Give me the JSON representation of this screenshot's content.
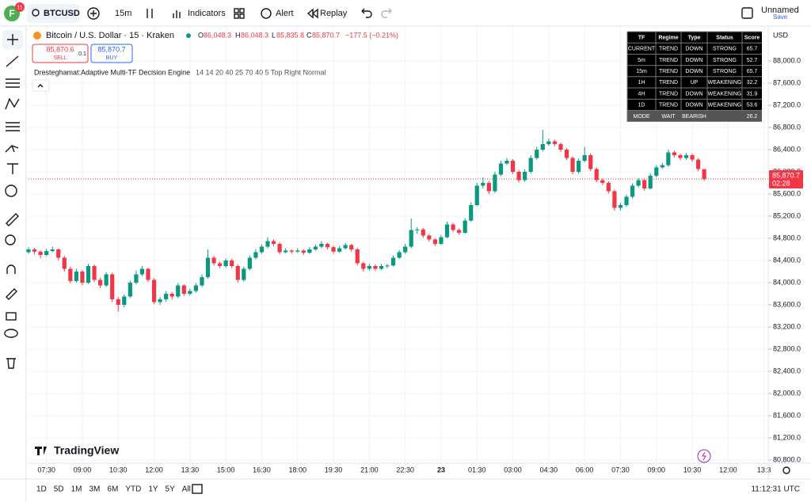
{
  "toolbar": {
    "avatar": "F",
    "badge": "11",
    "symbol": "BTCUSD",
    "interval": "15m",
    "indicators": "Indicators",
    "alert": "Alert",
    "replay": "Replay",
    "layout_name": "Unnamed",
    "save": "Save"
  },
  "legend": {
    "title": "Bitcoin / U.S. Dollar · 15 · Kraken",
    "o_label": "O",
    "o": "86,048.3",
    "h_label": "H",
    "h": "86,048.3",
    "l_label": "L",
    "l": "85,835.8",
    "c_label": "C",
    "c": "85,870.7",
    "change": "−177.5 (−0.21%)",
    "sell_price": "85,870.6",
    "sell": "SELL",
    "qty": "0.1",
    "buy_price": "85,870.7",
    "buy": "BUY",
    "indicator": "Dresteghamat:Adaptive Multi-TF Decision Engine",
    "indicator_params": "14 14 20 40 25 70 40 5 Top Right Normal",
    "currency": "USD"
  },
  "table": {
    "header": [
      "TF",
      "Regime",
      "Type",
      "Status",
      "Score"
    ],
    "rows": [
      [
        "CURRENT",
        "TREND",
        "DOWN",
        "STRONG",
        "65.7"
      ],
      [
        "5m",
        "TREND",
        "DOWN",
        "STRONG",
        "52.7"
      ],
      [
        "15m",
        "TREND",
        "DOWN",
        "STRONG",
        "65.7"
      ],
      [
        "1H",
        "TREND",
        "UP",
        "WEAKENING",
        "32.2"
      ],
      [
        "4H",
        "TREND",
        "DOWN",
        "WEAKENING",
        "31.9"
      ],
      [
        "1D",
        "TREND",
        "DOWN",
        "WEAKENING",
        "53.6"
      ],
      [
        "MODE",
        "WAIT",
        "BEARISH",
        "",
        "26.2"
      ]
    ]
  },
  "chart_data": {
    "type": "candlestick",
    "up_color": "#089981",
    "down_color": "#f23645",
    "ylim": [
      80671,
      88629
    ],
    "yticks": [
      {
        "value": 80800,
        "label": "80,800.0"
      },
      {
        "value": 81200,
        "label": "81,200.0"
      },
      {
        "value": 81600,
        "label": "81,600.0"
      },
      {
        "value": 82000,
        "label": "82,000.0"
      },
      {
        "value": 82400,
        "label": "82,400.0"
      },
      {
        "value": 82800,
        "label": "82,800.0"
      },
      {
        "value": 83200,
        "label": "83,200.0"
      },
      {
        "value": 83600,
        "label": "83,600.0"
      },
      {
        "value": 84000,
        "label": "84,000.0"
      },
      {
        "value": 84400,
        "label": "84,400.0"
      },
      {
        "value": 84800,
        "label": "84,800.0"
      },
      {
        "value": 85200,
        "label": "85,200.0"
      },
      {
        "value": 85600,
        "label": "85,600.0"
      },
      {
        "value": 86000,
        "label": "86,000.0"
      },
      {
        "value": 86400,
        "label": "86,400.0"
      },
      {
        "value": 86800,
        "label": "86,800.0"
      },
      {
        "value": 87200,
        "label": "87,200.0"
      },
      {
        "value": 87600,
        "label": "87,600.0"
      },
      {
        "value": 88000,
        "label": "88,000.0"
      }
    ],
    "xticks": [
      "07:30",
      "09:00",
      "10:30",
      "12:00",
      "13:30",
      "15:00",
      "16:30",
      "18:00",
      "19:30",
      "21:00",
      "22:30",
      "23",
      "01:30",
      "03:00",
      "04:30",
      "06:00",
      "07:30",
      "09:00",
      "10:30",
      "12:00",
      "13:3"
    ],
    "last_price": {
      "value": 85870.7,
      "label": "85,870.7",
      "countdown": "02:28"
    },
    "ohlc": [
      [
        84550,
        84640,
        84520,
        84600
      ],
      [
        84600,
        84630,
        84510,
        84560
      ],
      [
        84560,
        84580,
        84440,
        84500
      ],
      [
        84500,
        84610,
        84480,
        84570
      ],
      [
        84570,
        84650,
        84550,
        84600
      ],
      [
        84600,
        84620,
        84400,
        84450
      ],
      [
        84450,
        84480,
        84200,
        84250
      ],
      [
        84250,
        84290,
        83990,
        84030
      ],
      [
        84030,
        84250,
        84000,
        84200
      ],
      [
        84200,
        84230,
        83950,
        84000
      ],
      [
        84000,
        84340,
        83980,
        84300
      ],
      [
        84300,
        84330,
        84010,
        84050
      ],
      [
        84050,
        84090,
        83900,
        83950
      ],
      [
        83950,
        84190,
        83920,
        84150
      ],
      [
        84150,
        84180,
        83650,
        83700
      ],
      [
        83700,
        83740,
        83480,
        83600
      ],
      [
        83600,
        83790,
        83560,
        83750
      ],
      [
        83750,
        84040,
        83720,
        84000
      ],
      [
        84000,
        84220,
        83970,
        84150
      ],
      [
        84150,
        84300,
        84120,
        84250
      ],
      [
        84250,
        84270,
        84010,
        84050
      ],
      [
        84050,
        84080,
        83610,
        83650
      ],
      [
        83650,
        83740,
        83600,
        83700
      ],
      [
        83700,
        83850,
        83660,
        83800
      ],
      [
        83800,
        83830,
        83700,
        83750
      ],
      [
        83750,
        83990,
        83720,
        83950
      ],
      [
        83950,
        83970,
        83760,
        83800
      ],
      [
        83800,
        83890,
        83770,
        83850
      ],
      [
        83850,
        83990,
        83820,
        83950
      ],
      [
        83950,
        84150,
        83920,
        84100
      ],
      [
        84100,
        84600,
        84070,
        84450
      ],
      [
        84450,
        84490,
        84310,
        84350
      ],
      [
        84350,
        84380,
        84260,
        84300
      ],
      [
        84300,
        84440,
        84270,
        84400
      ],
      [
        84400,
        84430,
        84260,
        84300
      ],
      [
        84300,
        84330,
        84000,
        84050
      ],
      [
        84050,
        84290,
        84020,
        84250
      ],
      [
        84250,
        84490,
        84220,
        84450
      ],
      [
        84450,
        84600,
        84420,
        84550
      ],
      [
        84550,
        84690,
        84520,
        84650
      ],
      [
        84650,
        84820,
        84620,
        84750
      ],
      [
        84750,
        84780,
        84660,
        84700
      ],
      [
        84700,
        84730,
        84510,
        84550
      ],
      [
        84550,
        84620,
        84530,
        84580
      ],
      [
        84580,
        84600,
        84520,
        84560
      ],
      [
        84560,
        84620,
        84540,
        84580
      ],
      [
        84580,
        84600,
        84500,
        84540
      ],
      [
        84540,
        84640,
        84520,
        84600
      ],
      [
        84600,
        84690,
        84580,
        84650
      ],
      [
        84650,
        84750,
        84620,
        84700
      ],
      [
        84700,
        84720,
        84600,
        84640
      ],
      [
        84640,
        84670,
        84520,
        84560
      ],
      [
        84560,
        84660,
        84540,
        84620
      ],
      [
        84620,
        84720,
        84600,
        84680
      ],
      [
        84680,
        84700,
        84560,
        84600
      ],
      [
        84600,
        84630,
        84310,
        84350
      ],
      [
        84350,
        84380,
        84200,
        84250
      ],
      [
        84250,
        84340,
        84220,
        84300
      ],
      [
        84300,
        84330,
        84210,
        84250
      ],
      [
        84250,
        84340,
        84230,
        84300
      ],
      [
        84300,
        84340,
        84260,
        84310
      ],
      [
        84310,
        84490,
        84290,
        84450
      ],
      [
        84450,
        84590,
        84430,
        84550
      ],
      [
        84550,
        84700,
        84520,
        84650
      ],
      [
        84650,
        85160,
        84620,
        84950
      ],
      [
        84950,
        85000,
        84880,
        84960
      ],
      [
        84960,
        84990,
        84810,
        84850
      ],
      [
        84850,
        84880,
        84740,
        84780
      ],
      [
        84780,
        84800,
        84660,
        84700
      ],
      [
        84700,
        84860,
        84680,
        84820
      ],
      [
        84820,
        85100,
        84800,
        85050
      ],
      [
        85050,
        85080,
        84910,
        84950
      ],
      [
        84950,
        84980,
        84860,
        84900
      ],
      [
        84900,
        85160,
        84880,
        85120
      ],
      [
        85120,
        85450,
        85100,
        85400
      ],
      [
        85400,
        85800,
        85380,
        85750
      ],
      [
        85750,
        85900,
        85700,
        85800
      ],
      [
        85800,
        85830,
        85600,
        85650
      ],
      [
        85650,
        86000,
        85620,
        85950
      ],
      [
        85950,
        86200,
        85920,
        86150
      ],
      [
        86150,
        86250,
        86120,
        86200
      ],
      [
        86200,
        86230,
        85960,
        86000
      ],
      [
        86000,
        86030,
        85810,
        85850
      ],
      [
        85850,
        86040,
        85820,
        86000
      ],
      [
        86000,
        86300,
        85970,
        86250
      ],
      [
        86250,
        86450,
        86220,
        86400
      ],
      [
        86400,
        86760,
        86370,
        86500
      ],
      [
        86500,
        86600,
        86470,
        86550
      ],
      [
        86550,
        86580,
        86460,
        86500
      ],
      [
        86500,
        86530,
        86360,
        86400
      ],
      [
        86400,
        86430,
        86210,
        86250
      ],
      [
        86250,
        86280,
        85960,
        86000
      ],
      [
        86000,
        86240,
        85970,
        86200
      ],
      [
        86200,
        86450,
        86170,
        86300
      ],
      [
        86300,
        86330,
        86010,
        86050
      ],
      [
        86050,
        86080,
        85810,
        85850
      ],
      [
        85850,
        85880,
        85760,
        85800
      ],
      [
        85800,
        85830,
        85610,
        85650
      ],
      [
        85650,
        85680,
        85300,
        85350
      ],
      [
        85350,
        85440,
        85300,
        85400
      ],
      [
        85400,
        85590,
        85370,
        85550
      ],
      [
        85550,
        85790,
        85520,
        85750
      ],
      [
        85750,
        85890,
        85720,
        85850
      ],
      [
        85850,
        85880,
        85660,
        85700
      ],
      [
        85700,
        85970,
        85680,
        85930
      ],
      [
        85930,
        86120,
        85900,
        86080
      ],
      [
        86080,
        86160,
        86050,
        86120
      ],
      [
        86120,
        86400,
        86090,
        86350
      ],
      [
        86350,
        86380,
        86260,
        86300
      ],
      [
        86300,
        86330,
        86210,
        86250
      ],
      [
        86250,
        86340,
        86220,
        86300
      ],
      [
        86300,
        86330,
        86180,
        86220
      ],
      [
        86220,
        86250,
        86010,
        86050
      ],
      [
        86048.3,
        86048.3,
        85835.8,
        85870.7
      ]
    ]
  },
  "bottom": {
    "logo": "TradingView",
    "ranges": [
      "1D",
      "5D",
      "1M",
      "3M",
      "6M",
      "YTD",
      "1Y",
      "5Y",
      "All"
    ],
    "clock": "11:12:31 UTC"
  }
}
